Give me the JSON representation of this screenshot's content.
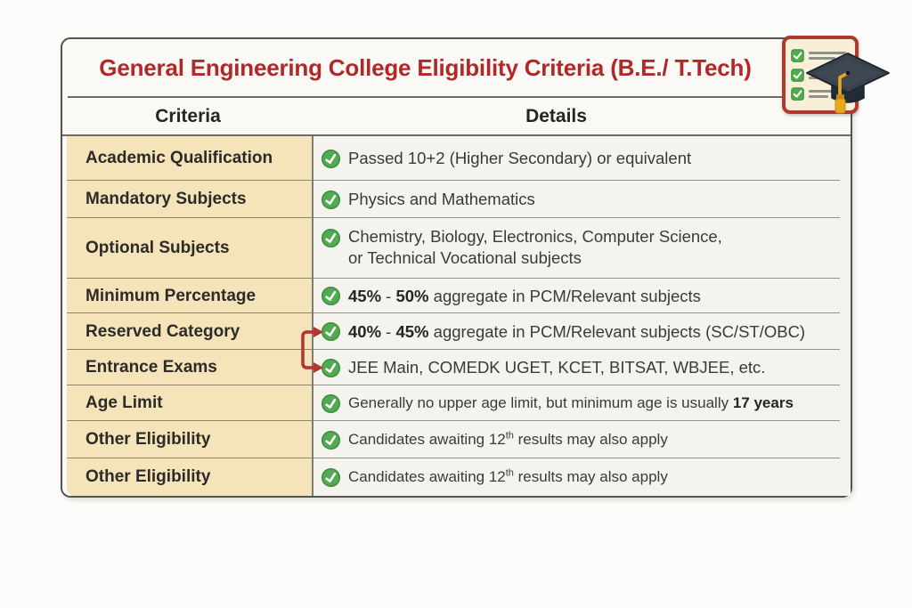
{
  "page": {
    "title": "General Engineering College Eligibility Criteria (B.E./ T.Tech)"
  },
  "header": {
    "criteria": "Criteria",
    "details": "Details"
  },
  "colors": {
    "page_bg": "#fcfcfa",
    "card_bg": "#faf9f5",
    "accent_red": "#b02828",
    "cream": "#f5e4ba",
    "details_bg": "#f4f3ee",
    "check_green": "#52ab50",
    "check_green_dark": "#3e8e41",
    "arrow_red": "#b4362e",
    "border_dark": "#55544f",
    "line_gray": "#93928a",
    "badge_border": "#b0392e",
    "badge_bg": "#f8efd8",
    "cap_dark": "#39424d",
    "tassel_gold": "#e8a81e"
  },
  "icons": {
    "row_check": "green-check-circle-icon",
    "badge_checklist": "checklist-card-icon",
    "badge_cap": "graduation-cap-icon",
    "connector": "red-bracket-arrow"
  },
  "table": {
    "rows": [
      {
        "label": "Academic Qualification",
        "compact": false,
        "arrow": false,
        "detail": [
          [
            {
              "t": "Passed 10+2 (Higher Secondary) or equivalent"
            }
          ]
        ]
      },
      {
        "label": "Mandatory Subjects",
        "compact": false,
        "arrow": false,
        "detail": [
          [
            {
              "t": "Physics and Mathematics"
            }
          ]
        ]
      },
      {
        "label": "Optional Subjects",
        "compact": false,
        "arrow": false,
        "detail": [
          [
            {
              "t": "Chemistry, Biology, Electronics, Computer Science,"
            }
          ],
          [
            {
              "t": "or Technical Vocational subjects"
            }
          ]
        ]
      },
      {
        "label": "Minimum Percentage",
        "compact": false,
        "arrow": false,
        "detail": [
          [
            {
              "t": "45%",
              "b": true
            },
            {
              "t": " - "
            },
            {
              "t": "50%",
              "b": true
            },
            {
              "t": " aggregate in PCM/Relevant subjects"
            }
          ]
        ]
      },
      {
        "label": "Reserved Category",
        "compact": false,
        "arrow": true,
        "detail": [
          [
            {
              "t": "40%",
              "b": true
            },
            {
              "t": " - "
            },
            {
              "t": "45%",
              "b": true
            },
            {
              "t": " aggregate in PCM/Relevant subjects (SC/ST/OBC)"
            }
          ]
        ]
      },
      {
        "label": "Entrance Exams",
        "compact": false,
        "arrow": true,
        "detail": [
          [
            {
              "t": "JEE Main, COMEDK UGET, KCET, BITSAT, WBJEE, etc."
            }
          ]
        ]
      },
      {
        "label": "Age Limit",
        "compact": true,
        "arrow": false,
        "detail": [
          [
            {
              "t": "Generally no upper age limit, but minimum age is usually "
            },
            {
              "t": "17 years",
              "b": true
            }
          ]
        ]
      },
      {
        "label": "Other Eligibility",
        "compact": true,
        "arrow": false,
        "detail": [
          [
            {
              "t": "Candidates awaiting 12"
            },
            {
              "t": "th",
              "sup": true
            },
            {
              "t": " results may also apply"
            }
          ]
        ]
      },
      {
        "label": "Other Eligibility",
        "compact": true,
        "arrow": false,
        "detail": [
          [
            {
              "t": "Candidates awaiting 12"
            },
            {
              "t": "th",
              "sup": true
            },
            {
              "t": " results may also apply"
            }
          ]
        ]
      }
    ]
  },
  "chart_data": {
    "type": "table",
    "title": "General Engineering College Eligibility Criteria (B.E./ T.Tech)",
    "columns": [
      "Criteria",
      "Details"
    ],
    "rows": [
      [
        "Academic Qualification",
        "Passed 10+2 (Higher Secondary) or equivalent"
      ],
      [
        "Mandatory Subjects",
        "Physics and Mathematics"
      ],
      [
        "Optional Subjects",
        "Chemistry, Biology, Electronics, Computer Science, or Technical Vocational subjects"
      ],
      [
        "Minimum Percentage",
        "45% - 50% aggregate in PCM/Relevant subjects"
      ],
      [
        "Reserved Category",
        "40% - 45% aggregate in PCM/Relevant subjects (SC/ST/OBC)"
      ],
      [
        "Entrance Exams",
        "JEE Main, COMEDK UGET, KCET, BITSAT, WBJEE, etc."
      ],
      [
        "Age Limit",
        "Generally no upper age limit, but minimum age is usually 17 years"
      ],
      [
        "Other Eligibility",
        "Candidates awaiting 12th results may also apply"
      ],
      [
        "Other Eligibility",
        "Candidates awaiting 12th results may also apply"
      ]
    ]
  }
}
